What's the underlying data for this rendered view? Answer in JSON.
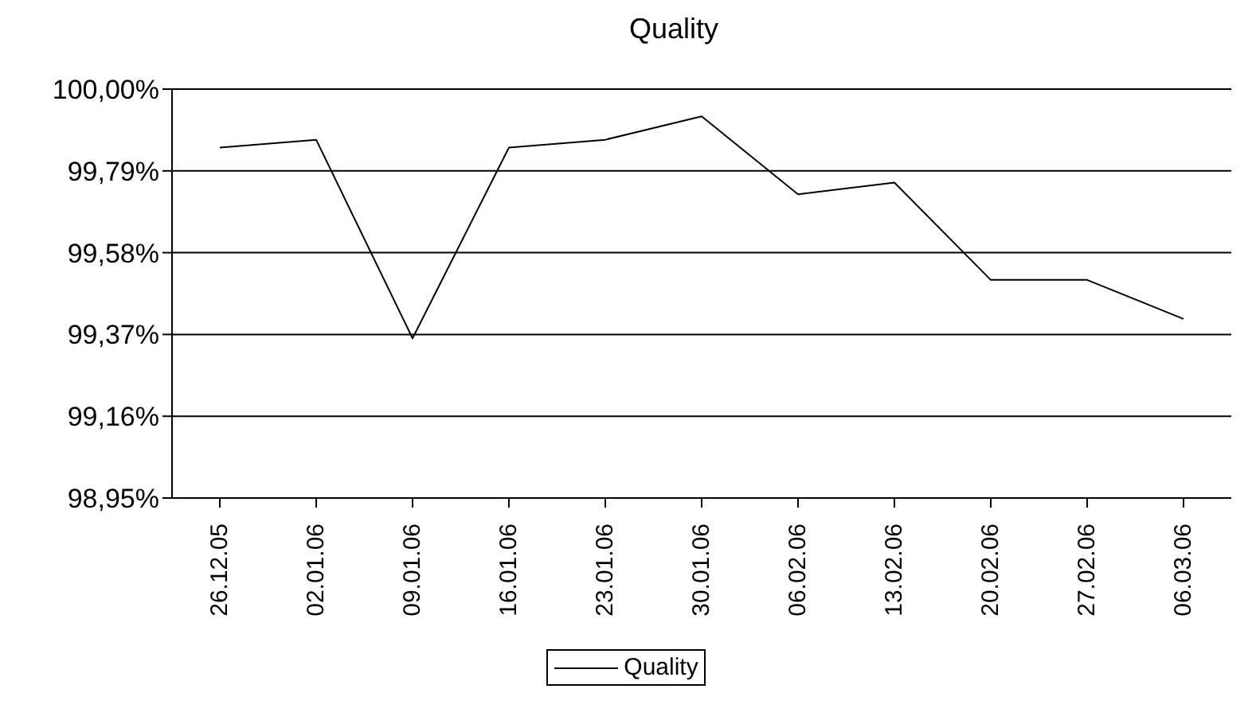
{
  "chart_data": {
    "type": "line",
    "title": "Quality",
    "categories": [
      "26.12.05",
      "02.01.06",
      "09.01.06",
      "16.01.06",
      "23.01.06",
      "30.01.06",
      "06.02.06",
      "13.02.06",
      "20.02.06",
      "27.02.06",
      "06.03.06"
    ],
    "series": [
      {
        "name": "Quality",
        "color": "#000000",
        "values": [
          99.85,
          99.87,
          99.36,
          99.85,
          99.87,
          99.93,
          99.73,
          99.76,
          99.51,
          99.51,
          99.41
        ]
      }
    ],
    "ylim": [
      98.95,
      100
    ],
    "yticks": [
      {
        "value": 98.95,
        "label": "98,95%"
      },
      {
        "value": 99.16,
        "label": "99,16%"
      },
      {
        "value": 99.37,
        "label": "99,37%"
      },
      {
        "value": 99.58,
        "label": "99,58%"
      },
      {
        "value": 99.79,
        "label": "99,79%"
      },
      {
        "value": 100,
        "label": "100,00%"
      }
    ],
    "grid": "y",
    "legend": "bottom",
    "marker": "none",
    "line_style": "solid"
  }
}
